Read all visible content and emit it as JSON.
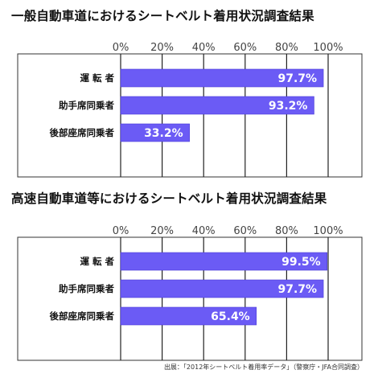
{
  "chart_data": [
    {
      "type": "bar",
      "orientation": "horizontal",
      "title": "一般自動車道におけるシートベルト着用状況調査結果",
      "categories": [
        "運 転 者",
        "助手席同乗者",
        "後部座席同乗者"
      ],
      "values": [
        97.7,
        93.2,
        33.2
      ],
      "value_labels": [
        "97.7%",
        "93.2%",
        "33.2%"
      ],
      "x_ticks": [
        "0%",
        "20%",
        "40%",
        "60%",
        "80%",
        "100%"
      ],
      "xlim": [
        0,
        100
      ],
      "grid": true,
      "bar_color": "#6b5bf5"
    },
    {
      "type": "bar",
      "orientation": "horizontal",
      "title": "高速自動車道等におけるシートベルト着用状況調査結果",
      "categories": [
        "運 転 者",
        "助手席同乗者",
        "後部座席同乗者"
      ],
      "values": [
        99.5,
        97.7,
        65.4
      ],
      "value_labels": [
        "99.5%",
        "97.7%",
        "65.4%"
      ],
      "x_ticks": [
        "0%",
        "20%",
        "40%",
        "60%",
        "80%",
        "100%"
      ],
      "xlim": [
        0,
        100
      ],
      "grid": true,
      "bar_color": "#6b5bf5"
    }
  ],
  "source_note": "出展：「2012年シートベルト着用率データ」（警察庁・JFA合同調査）"
}
